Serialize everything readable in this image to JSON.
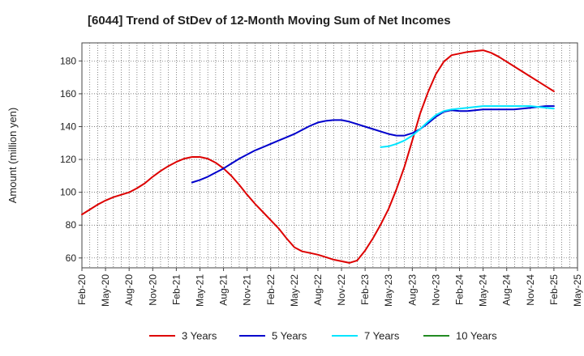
{
  "chart_data": {
    "type": "line",
    "title": "[6044]  Trend of StDev of 12-Month Moving Sum of Net Incomes",
    "ylabel": "Amount (million yen)",
    "xlabel": "",
    "ylim": [
      54,
      191
    ],
    "yticks": [
      60,
      80,
      100,
      120,
      140,
      160,
      180
    ],
    "x_tick_labels": [
      "Feb-20",
      "May-20",
      "Aug-20",
      "Nov-20",
      "Feb-21",
      "May-21",
      "Aug-21",
      "Nov-21",
      "Feb-22",
      "May-22",
      "Aug-22",
      "Nov-22",
      "Feb-23",
      "May-23",
      "Aug-23",
      "Nov-23",
      "Feb-24",
      "May-24",
      "Aug-24",
      "Nov-24",
      "Feb-25",
      "May-25"
    ],
    "grid": true,
    "legend_position": "bottom",
    "series": [
      {
        "name": "3 Years",
        "color": "#dd0000",
        "points": [
          [
            "2020-02",
            86.5
          ],
          [
            "2020-03",
            89.5
          ],
          [
            "2020-04",
            92.5
          ],
          [
            "2020-05",
            95
          ],
          [
            "2020-06",
            97
          ],
          [
            "2020-07",
            98.5
          ],
          [
            "2020-08",
            100
          ],
          [
            "2020-09",
            102.5
          ],
          [
            "2020-10",
            105.5
          ],
          [
            "2020-11",
            109.5
          ],
          [
            "2020-12",
            113
          ],
          [
            "2021-01",
            116
          ],
          [
            "2021-02",
            118.5
          ],
          [
            "2021-03",
            120.5
          ],
          [
            "2021-04",
            121.5
          ],
          [
            "2021-05",
            121.5
          ],
          [
            "2021-06",
            120.5
          ],
          [
            "2021-07",
            118
          ],
          [
            "2021-08",
            114.5
          ],
          [
            "2021-09",
            110
          ],
          [
            "2021-10",
            104.5
          ],
          [
            "2021-11",
            98.5
          ],
          [
            "2021-12",
            93
          ],
          [
            "2022-01",
            88
          ],
          [
            "2022-02",
            83
          ],
          [
            "2022-03",
            78
          ],
          [
            "2022-04",
            72
          ],
          [
            "2022-05",
            66.5
          ],
          [
            "2022-06",
            64
          ],
          [
            "2022-07",
            63
          ],
          [
            "2022-08",
            62
          ],
          [
            "2022-09",
            60.5
          ],
          [
            "2022-10",
            59
          ],
          [
            "2022-11",
            58
          ],
          [
            "2022-12",
            57
          ],
          [
            "2023-01",
            58.5
          ],
          [
            "2023-02",
            64.5
          ],
          [
            "2023-03",
            72
          ],
          [
            "2023-04",
            80.5
          ],
          [
            "2023-05",
            90
          ],
          [
            "2023-06",
            102
          ],
          [
            "2023-07",
            115.5
          ],
          [
            "2023-08",
            131.5
          ],
          [
            "2023-09",
            148
          ],
          [
            "2023-10",
            161
          ],
          [
            "2023-11",
            172
          ],
          [
            "2023-12",
            179.5
          ],
          [
            "2024-01",
            183.5
          ],
          [
            "2024-02",
            184.5
          ],
          [
            "2024-03",
            185.5
          ],
          [
            "2024-04",
            186
          ],
          [
            "2024-05",
            186.5
          ],
          [
            "2024-06",
            185
          ],
          [
            "2024-07",
            182.5
          ],
          [
            "2024-08",
            179.5
          ],
          [
            "2024-09",
            176.5
          ],
          [
            "2024-10",
            173.5
          ],
          [
            "2024-11",
            170.5
          ],
          [
            "2024-12",
            167.5
          ],
          [
            "2025-01",
            164.5
          ],
          [
            "2025-02",
            161.5
          ]
        ]
      },
      {
        "name": "5 Years",
        "color": "#0000cc",
        "points": [
          [
            "2021-04",
            106
          ],
          [
            "2021-05",
            107.5
          ],
          [
            "2021-06",
            109.5
          ],
          [
            "2021-07",
            112
          ],
          [
            "2021-08",
            114.5
          ],
          [
            "2021-09",
            117.5
          ],
          [
            "2021-10",
            120.5
          ],
          [
            "2021-11",
            123
          ],
          [
            "2021-12",
            125.5
          ],
          [
            "2022-01",
            127.5
          ],
          [
            "2022-02",
            129.5
          ],
          [
            "2022-03",
            131.5
          ],
          [
            "2022-04",
            133.5
          ],
          [
            "2022-05",
            135.5
          ],
          [
            "2022-06",
            138
          ],
          [
            "2022-07",
            140.5
          ],
          [
            "2022-08",
            142.5
          ],
          [
            "2022-09",
            143.5
          ],
          [
            "2022-10",
            144
          ],
          [
            "2022-11",
            144
          ],
          [
            "2022-12",
            143
          ],
          [
            "2023-01",
            141.5
          ],
          [
            "2023-02",
            140
          ],
          [
            "2023-03",
            138.5
          ],
          [
            "2023-04",
            137
          ],
          [
            "2023-05",
            135.5
          ],
          [
            "2023-06",
            134.5
          ],
          [
            "2023-07",
            134.5
          ],
          [
            "2023-08",
            136
          ],
          [
            "2023-09",
            138.5
          ],
          [
            "2023-10",
            142
          ],
          [
            "2023-11",
            146
          ],
          [
            "2023-12",
            149
          ],
          [
            "2024-01",
            150
          ],
          [
            "2024-02",
            149.5
          ],
          [
            "2024-03",
            149.5
          ],
          [
            "2024-04",
            150
          ],
          [
            "2024-05",
            150.5
          ],
          [
            "2024-06",
            150.5
          ],
          [
            "2024-07",
            150.5
          ],
          [
            "2024-08",
            150.5
          ],
          [
            "2024-09",
            150.5
          ],
          [
            "2024-10",
            151
          ],
          [
            "2024-11",
            151.5
          ],
          [
            "2024-12",
            152
          ],
          [
            "2025-01",
            152.5
          ],
          [
            "2025-02",
            152.5
          ]
        ]
      },
      {
        "name": "7 Years",
        "color": "#00e5ff",
        "points": [
          [
            "2023-04",
            127.5
          ],
          [
            "2023-05",
            128
          ],
          [
            "2023-06",
            129.5
          ],
          [
            "2023-07",
            131.5
          ],
          [
            "2023-08",
            134.5
          ],
          [
            "2023-09",
            138.5
          ],
          [
            "2023-10",
            143
          ],
          [
            "2023-11",
            147
          ],
          [
            "2023-12",
            149.5
          ],
          [
            "2024-01",
            150.5
          ],
          [
            "2024-02",
            151
          ],
          [
            "2024-03",
            151.5
          ],
          [
            "2024-04",
            152
          ],
          [
            "2024-05",
            152.5
          ],
          [
            "2024-06",
            152.5
          ],
          [
            "2024-07",
            152.5
          ],
          [
            "2024-08",
            152.5
          ],
          [
            "2024-09",
            152.5
          ],
          [
            "2024-10",
            152.5
          ],
          [
            "2024-11",
            152.5
          ],
          [
            "2024-12",
            152
          ],
          [
            "2025-01",
            151.5
          ],
          [
            "2025-02",
            151
          ]
        ]
      },
      {
        "name": "10 Years",
        "color": "#228b22",
        "points": []
      }
    ]
  }
}
